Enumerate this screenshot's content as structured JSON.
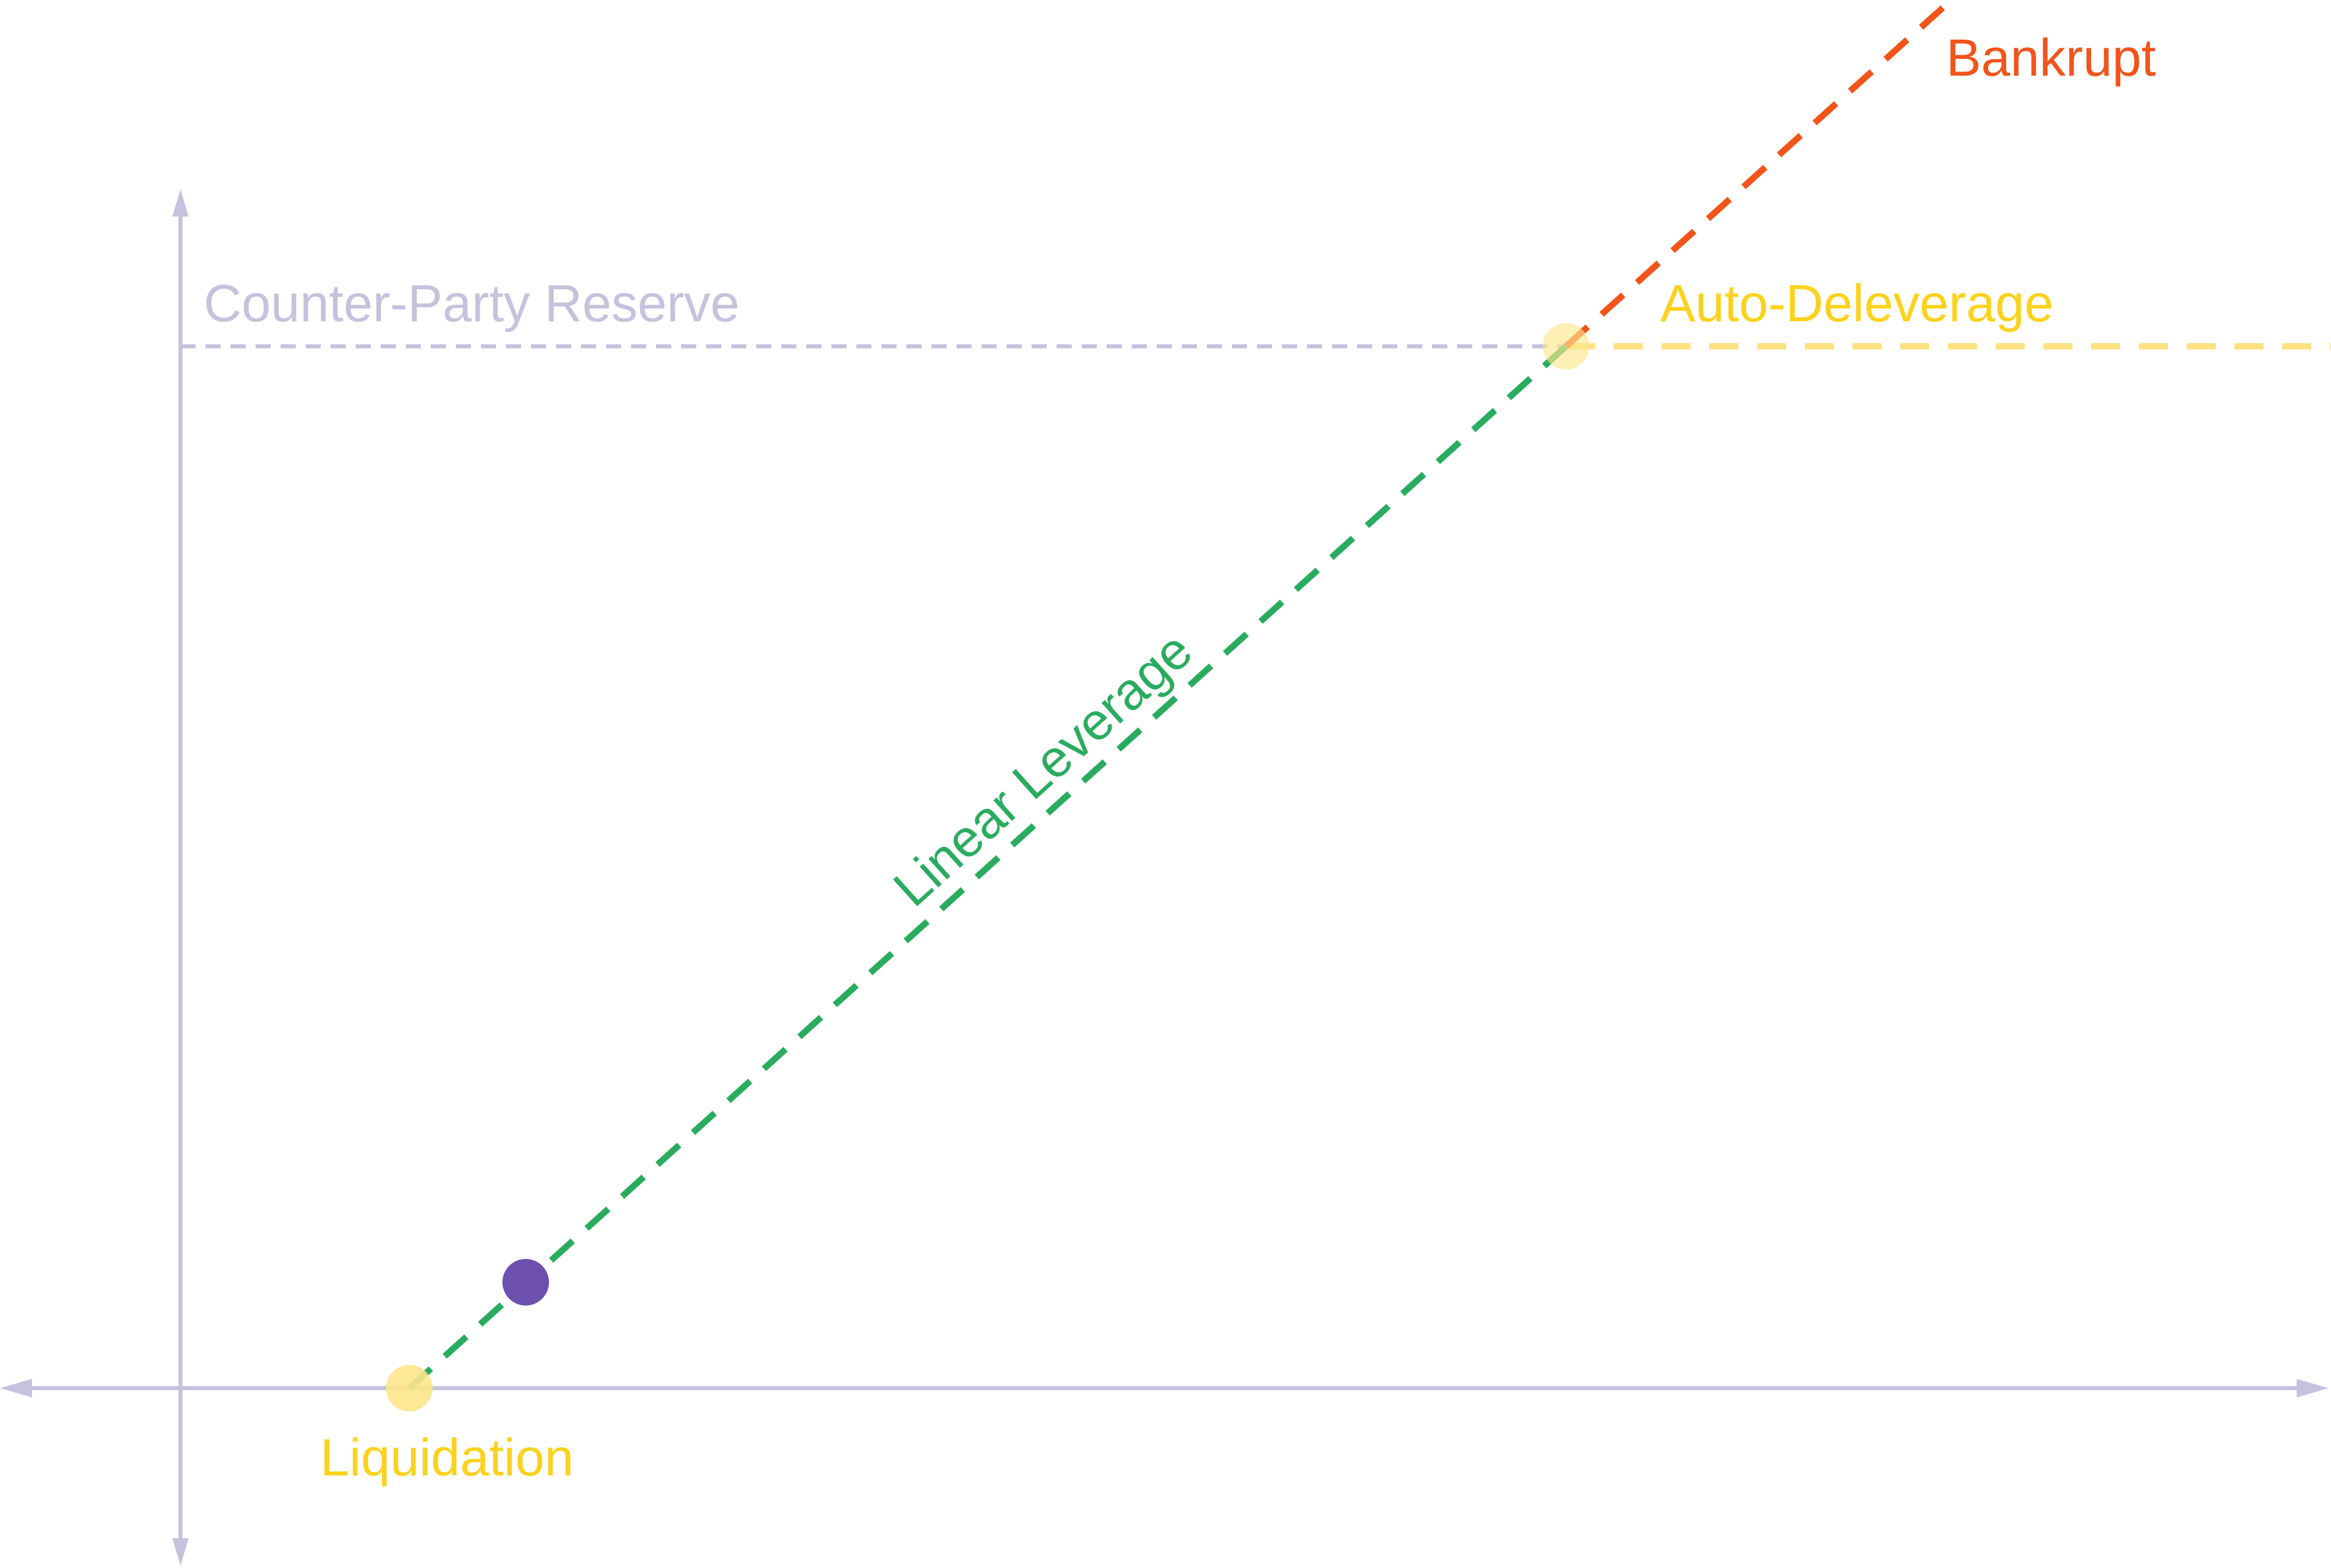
{
  "labels": {
    "counter_party_reserve": "Counter-Party Reserve",
    "auto_deleverage": "Auto-Deleverage",
    "bankrupt": "Bankrupt",
    "linear_leverage": "Linear Leverage",
    "liquidation": "Liquidation"
  },
  "colors": {
    "axis": "#c4c2dd",
    "reserve_line": "#c4c2dd",
    "reserve_text": "#c4c2dd",
    "leverage_line": "#2aac5f",
    "leverage_text": "#2aac5f",
    "bankrupt_line": "#f2541b",
    "bankrupt_text": "#f2541b",
    "deleverage_line": "#fde285",
    "marker_yellow": "#fde68c",
    "label_yellow": "#fcd21c",
    "position_marker": "#6c4fae"
  }
}
